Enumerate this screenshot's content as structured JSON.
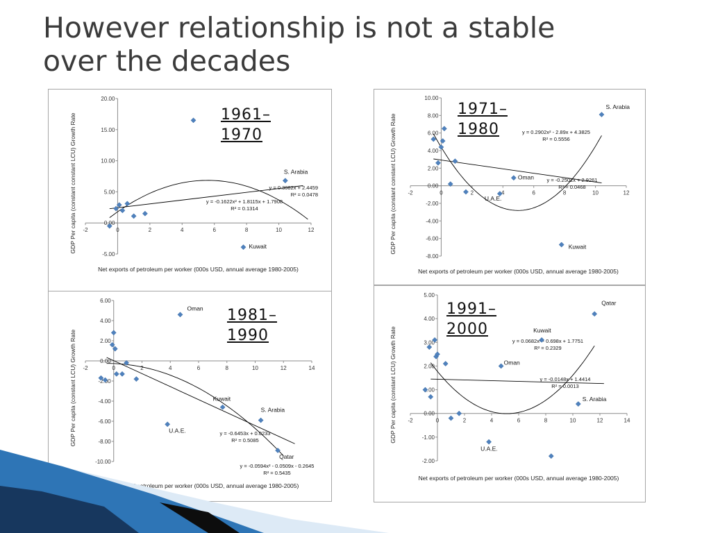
{
  "title": {
    "line1": "However relationship is not a stable",
    "line2": "over the decades"
  },
  "colors": {
    "marker": "#4f81bd",
    "axis": "#8c8c8c",
    "trend": "#000000",
    "decor_dark": "#17375e",
    "decor_blue": "#2e75b6",
    "decor_light": "#c6dbef"
  },
  "chart_data": [
    {
      "type": "scatter",
      "period": {
        "line1": "1961–",
        "line2": "1970"
      },
      "xlabel": "Net exports of petroleum per worker (000s USD, annual average 1980-2005)",
      "ylabel": "GDP Per capita (constant constant LCU) Growth Rate",
      "xlim": [
        -2,
        12
      ],
      "xticks": [
        -2,
        0,
        2,
        4,
        6,
        8,
        10,
        12
      ],
      "ylim": [
        -5,
        20
      ],
      "yticks": [
        -5,
        0,
        5,
        10,
        15,
        20
      ],
      "ytick_labels": [
        "-5.00",
        "0.00",
        "5.00",
        "10.00",
        "15.00",
        "20.00"
      ],
      "points": [
        {
          "x": -0.5,
          "y": -0.5
        },
        {
          "x": -0.1,
          "y": 2.3
        },
        {
          "x": 0.1,
          "y": 2.9
        },
        {
          "x": 0.3,
          "y": 2.0
        },
        {
          "x": 0.6,
          "y": 3.1
        },
        {
          "x": 1.0,
          "y": 1.1
        },
        {
          "x": 1.7,
          "y": 1.5
        },
        {
          "x": 4.7,
          "y": 16.5
        },
        {
          "x": 10.4,
          "y": 6.8,
          "label": "S. Arabia"
        },
        {
          "x": 7.8,
          "y": -3.9,
          "label": "Kuwait"
        }
      ],
      "trendlines": [
        {
          "kind": "linear",
          "coef": [
            2.4459,
            0.3082
          ],
          "from": -0.5,
          "to": 11.5,
          "eq": "y = 0.3082x + 2.4459",
          "r2": "R² = 0.0478"
        },
        {
          "kind": "poly2",
          "coef": [
            1.7908,
            1.8115,
            -0.1622
          ],
          "from": -0.5,
          "to": 11.8,
          "eq": "y = -0.1622x² + 1.8115x + 1.7908",
          "r2": "R² = 0.1314"
        }
      ]
    },
    {
      "type": "scatter",
      "period": {
        "line1": "1971–",
        "line2": "1980"
      },
      "xlabel": "Net exports of petroleum per worker (000s USD, annual average 1980-2005)",
      "ylabel": "GDP Per capita (constant constant LCU) Growth Rate",
      "xlim": [
        -2,
        12
      ],
      "xticks": [
        -2,
        0,
        2,
        4,
        6,
        8,
        10,
        12
      ],
      "ylim": [
        -8,
        10
      ],
      "yticks": [
        -8,
        -6,
        -4,
        -2,
        0,
        2,
        4,
        6,
        8,
        10
      ],
      "ytick_labels": [
        "-8.00",
        "-6.00",
        "-4.00",
        "-2.00",
        "0.00",
        "2.00",
        "4.00",
        "6.00",
        "8.00",
        "10.00"
      ],
      "points": [
        {
          "x": -0.5,
          "y": 5.3
        },
        {
          "x": -0.2,
          "y": 2.6
        },
        {
          "x": 0.0,
          "y": 4.4
        },
        {
          "x": 0.1,
          "y": 5.1
        },
        {
          "x": 0.2,
          "y": 6.5
        },
        {
          "x": 0.6,
          "y": 0.2
        },
        {
          "x": 0.9,
          "y": 2.8
        },
        {
          "x": 1.6,
          "y": -0.7
        },
        {
          "x": 3.8,
          "y": -0.9,
          "label": "U.A.E."
        },
        {
          "x": 4.7,
          "y": 0.9,
          "label": "Oman"
        },
        {
          "x": 10.4,
          "y": 8.1,
          "label": "S. Arabia"
        },
        {
          "x": 7.8,
          "y": -6.7,
          "label": "Kuwait"
        }
      ],
      "trendlines": [
        {
          "kind": "linear",
          "coef": [
            2.9261,
            -0.2502
          ],
          "from": -0.5,
          "to": 10.4,
          "eq": "y = -0.2502x + 2.9261",
          "r2": "R² = 0.0468"
        },
        {
          "kind": "poly2",
          "coef": [
            4.3825,
            -2.89,
            0.2902
          ],
          "from": -0.5,
          "to": 10.4,
          "eq": "y = 0.2902x² - 2.89x + 4.3825",
          "r2": "R² = 0.5556"
        }
      ]
    },
    {
      "type": "scatter",
      "period": {
        "line1": "1981–",
        "line2": "1990"
      },
      "xlabel": "Net exports of petroleum per worker (000s USD, annual average 1980-2005)",
      "ylabel": "GDP Per capita (constant LCU) Growth Rate",
      "xlim": [
        -2,
        14
      ],
      "xticks": [
        -2,
        0,
        2,
        4,
        6,
        8,
        10,
        12,
        14
      ],
      "ylim": [
        -10,
        6
      ],
      "yticks": [
        -10,
        -8,
        -6,
        -4,
        -2,
        0,
        2,
        4,
        6
      ],
      "ytick_labels": [
        "-10.00",
        "-8.00",
        "-6.00",
        "-4.00",
        "-2.00",
        "0.00",
        "2.00",
        "4.00",
        "6.00"
      ],
      "points": [
        {
          "x": -0.6,
          "y": -1.9
        },
        {
          "x": -0.9,
          "y": -1.7
        },
        {
          "x": -0.1,
          "y": 1.6
        },
        {
          "x": 0.0,
          "y": 2.8
        },
        {
          "x": 0.1,
          "y": 1.2
        },
        {
          "x": 0.2,
          "y": -1.3
        },
        {
          "x": 0.6,
          "y": -1.3
        },
        {
          "x": 0.9,
          "y": -0.2
        },
        {
          "x": 1.6,
          "y": -1.8
        },
        {
          "x": 4.7,
          "y": 4.6,
          "label": "Oman"
        },
        {
          "x": 3.8,
          "y": -6.3,
          "label": "U.A.E."
        },
        {
          "x": 7.7,
          "y": -4.6,
          "label": "Kuwait"
        },
        {
          "x": 10.4,
          "y": -5.9,
          "label": "S. Arabia"
        },
        {
          "x": 11.6,
          "y": -8.9,
          "label": "Qatar"
        }
      ],
      "trendlines": [
        {
          "kind": "linear",
          "coef": [
            0.0233,
            -0.6453
          ],
          "from": -0.5,
          "to": 12.8,
          "eq": "y = -0.6453x + 0.0233",
          "r2": "R² = 0.5085"
        },
        {
          "kind": "poly2",
          "coef": [
            -0.2645,
            -0.0509,
            -0.0594
          ],
          "from": -0.5,
          "to": 12.0,
          "eq": "y = -0.0594x² - 0.0509x - 0.2645",
          "r2": "R² = 0.5435"
        }
      ]
    },
    {
      "type": "scatter",
      "period": {
        "line1": "1991–",
        "line2": "2000"
      },
      "xlabel": "Net exports of petroleum per worker (000s USD, annual average 1980-2005)",
      "ylabel": "GDP Per capita (constant LCU) Growth Rate",
      "xlim": [
        -2,
        14
      ],
      "xticks": [
        -2,
        0,
        2,
        4,
        6,
        8,
        10,
        12,
        14
      ],
      "ylim": [
        -2,
        5
      ],
      "yticks": [
        -2,
        -1,
        0,
        1,
        2,
        3,
        4,
        5
      ],
      "ytick_labels": [
        "-2.00",
        "-1.00",
        "0.00",
        "1.00",
        "2.00",
        "3.00",
        "4.00",
        "5.00"
      ],
      "points": [
        {
          "x": -0.9,
          "y": 1.0
        },
        {
          "x": -0.5,
          "y": 0.7
        },
        {
          "x": -0.6,
          "y": 2.8
        },
        {
          "x": -0.2,
          "y": 3.1
        },
        {
          "x": -0.1,
          "y": 2.4
        },
        {
          "x": 0.0,
          "y": 2.5
        },
        {
          "x": 0.6,
          "y": 2.1
        },
        {
          "x": 1.0,
          "y": -0.2
        },
        {
          "x": 1.6,
          "y": 0.0
        },
        {
          "x": 4.7,
          "y": 2.0,
          "label": "Oman"
        },
        {
          "x": 3.8,
          "y": -1.2,
          "label": "U.A.E."
        },
        {
          "x": 7.7,
          "y": 3.1,
          "label": "Kuwait"
        },
        {
          "x": 10.4,
          "y": 0.4,
          "label": "S. Arabia"
        },
        {
          "x": 11.6,
          "y": 4.2,
          "label": "Qatar"
        },
        {
          "x": 8.4,
          "y": -1.8
        }
      ],
      "trendlines": [
        {
          "kind": "linear",
          "coef": [
            1.4414,
            -0.0148
          ],
          "from": -0.5,
          "to": 12.3,
          "eq": "y = -0.0148x + 1.4414",
          "r2": "R² = 0.0013"
        },
        {
          "kind": "poly2",
          "coef": [
            1.7751,
            -0.698,
            0.0682
          ],
          "from": -0.5,
          "to": 11.6,
          "eq": "y = 0.0682x² - 0.698x + 1.7751",
          "r2": "R² = 0.2329"
        }
      ]
    }
  ]
}
